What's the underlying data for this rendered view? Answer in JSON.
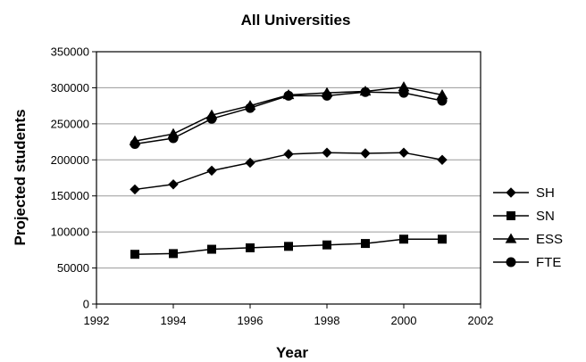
{
  "chart_data": {
    "type": "line",
    "title": "All Universities",
    "xlabel": "Year",
    "ylabel": "Projected students",
    "xlim": [
      1992,
      2002
    ],
    "ylim": [
      0,
      350000
    ],
    "x_ticks": [
      "1992",
      "1994",
      "1996",
      "1998",
      "2000",
      "2002"
    ],
    "y_ticks": [
      "0",
      "50000",
      "100000",
      "150000",
      "200000",
      "250000",
      "300000",
      "350000"
    ],
    "x": [
      1993,
      1994,
      1995,
      1996,
      1997,
      1998,
      1999,
      2000,
      2001
    ],
    "grid": "horizontal",
    "legend": "right",
    "series": [
      {
        "name": "SH",
        "marker": "diamond",
        "values": [
          159000,
          166000,
          185000,
          196000,
          208000,
          210000,
          209000,
          210000,
          200000
        ]
      },
      {
        "name": "SN",
        "marker": "square",
        "values": [
          69000,
          70000,
          76000,
          78000,
          80000,
          82000,
          84000,
          90000,
          90000
        ]
      },
      {
        "name": "ESS",
        "marker": "triangle",
        "values": [
          226000,
          236000,
          262000,
          275000,
          290000,
          293000,
          295000,
          301000,
          290000
        ]
      },
      {
        "name": "FTE",
        "marker": "circle",
        "values": [
          222000,
          230000,
          257000,
          272000,
          289000,
          289000,
          294000,
          293000,
          282000
        ]
      }
    ]
  }
}
